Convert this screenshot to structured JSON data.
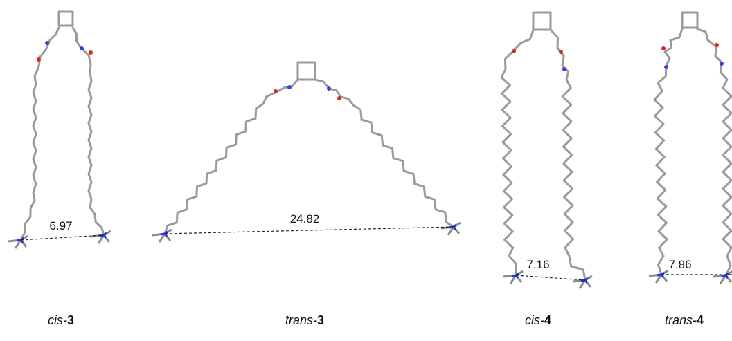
{
  "molecules": [
    {
      "prefix": "cis-",
      "number": "3",
      "distance": 6.97
    },
    {
      "prefix": "trans-",
      "number": "3",
      "distance": 24.82
    },
    {
      "prefix": "cis-",
      "number": "4",
      "distance": 7.16
    },
    {
      "prefix": "trans-",
      "number": "4",
      "distance": 7.86
    }
  ]
}
